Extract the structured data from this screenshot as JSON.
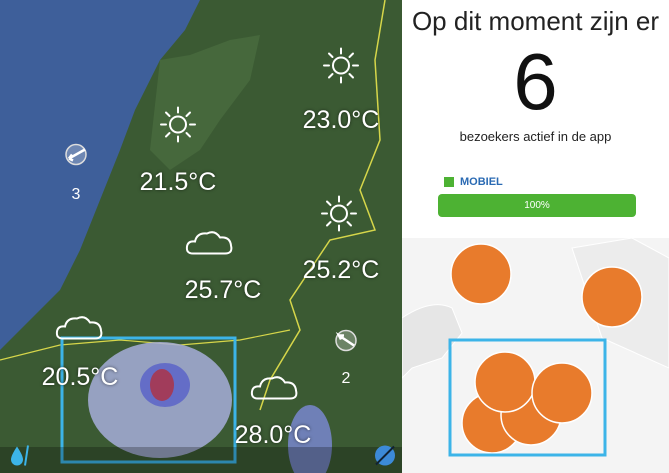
{
  "map": {
    "weather": [
      {
        "icon": "sun",
        "temp": "21.5°C"
      },
      {
        "icon": "sun",
        "temp": "23.0°C"
      },
      {
        "icon": "sun",
        "temp": "25.2°C"
      },
      {
        "icon": "cloud",
        "temp": "25.7°C"
      },
      {
        "icon": "cloud",
        "temp": "20.5°C"
      },
      {
        "icon": "cloud",
        "temp": "28.0°C"
      }
    ],
    "wind": [
      {
        "value": "3"
      },
      {
        "value": "2"
      }
    ],
    "colors": {
      "sea": "#3e5f9a",
      "land": "#3b5a33",
      "selection": "#3cb4e8",
      "rain": "#6f7fe0"
    }
  },
  "panel": {
    "title": "Op dit moment zijn er",
    "count": "6",
    "subtitle": "bezoekers actief in de app",
    "legend_label": "MOBIEL",
    "progress_label": "100%",
    "progress_value": 100,
    "colors": {
      "bar": "#4db233",
      "legend_text": "#2a6ab3",
      "circle": "#e87b2c"
    }
  }
}
